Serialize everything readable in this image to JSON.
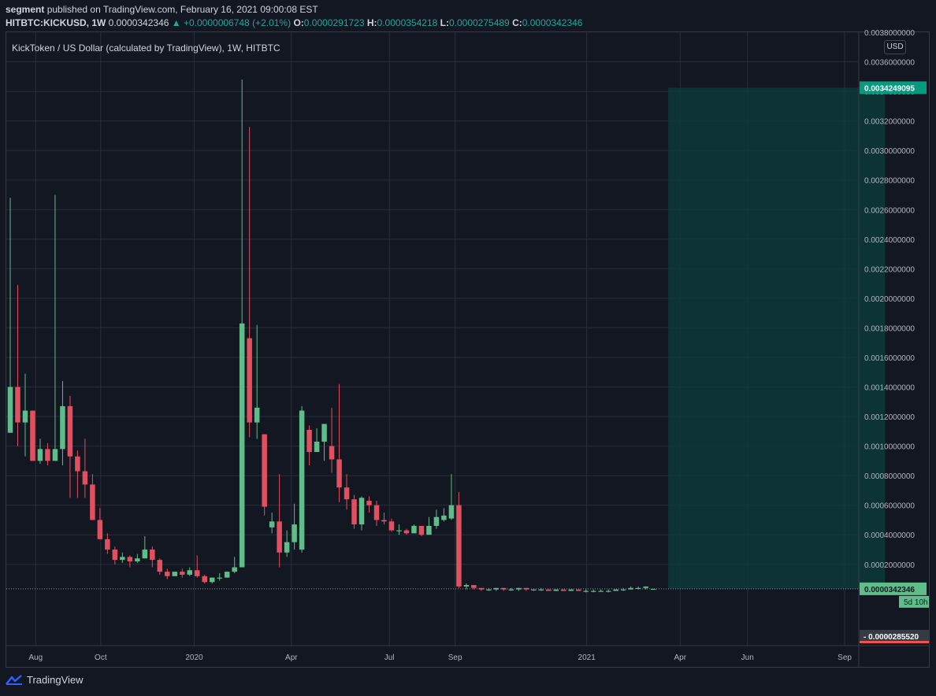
{
  "header": {
    "user": "segment",
    "published_text": "published on TradingView.com, February 16, 2021 09:00:08 EST",
    "symbol": "HITBTC:KICKUSD, 1W",
    "price": "0.0000342346",
    "change": "▲ +0.0000006748 (+2.01%)",
    "o_label": "O:",
    "o": "0.0000291723",
    "h_label": "H:",
    "h": "0.0000354218",
    "l_label": "L:",
    "l": "0.0000275489",
    "c_label": "C:",
    "c": "0.0000342346"
  },
  "chart_title": "KickToken / US Dollar (calculated by TradingView), 1W, HITBTC",
  "currency": "USD",
  "footer": {
    "brand": "TradingView"
  },
  "colors": {
    "bg": "#131722",
    "up": "#26a69a",
    "down": "#ef5350",
    "grid": "#2a2e39",
    "zone": "#0d3a38",
    "up_candle": "#5fbd89",
    "down_candle": "#e0505f"
  },
  "labels": {
    "zone_top": "0.0034249095",
    "last_price": "0.0000342346",
    "countdown": "5d 10h",
    "low_price": "0.0000285520"
  },
  "chart_data": {
    "type": "candlestick",
    "title": "KickToken / US Dollar (calculated by TradingView), 1W, HITBTC",
    "ylim": [
      -0.00035,
      0.0038
    ],
    "y_ticks": [
      "0.0036000000",
      "0.0034000000",
      "0.0032000000",
      "0.0030000000",
      "0.0028000000",
      "0.0026000000",
      "0.0024000000",
      "0.0022000000",
      "0.0020000000",
      "0.0018000000",
      "0.0016000000",
      "0.0014000000",
      "0.0012000000",
      "0.0010000000",
      "0.0008000000",
      "0.0006000000",
      "0.0004000000",
      "0.0002000000"
    ],
    "y_tick_values": [
      0.0036,
      0.0034,
      0.0032,
      0.003,
      0.0028,
      0.0026,
      0.0024,
      0.0022,
      0.002,
      0.0018,
      0.0016,
      0.0014,
      0.0012,
      0.001,
      0.0008,
      0.0006,
      0.0004,
      0.0002
    ],
    "x_ticks": [
      {
        "label": "Aug",
        "week": 3.4
      },
      {
        "label": "Oct",
        "week": 12.1
      },
      {
        "label": "2020",
        "week": 24.6
      },
      {
        "label": "Apr",
        "week": 37.6
      },
      {
        "label": "Jul",
        "week": 50.7
      },
      {
        "label": "Sep",
        "week": 59.5
      },
      {
        "label": "2021",
        "week": 77.1
      },
      {
        "label": "Apr",
        "week": 89.6
      },
      {
        "label": "Jun",
        "week": 98.6
      },
      {
        "label": "Sep",
        "week": 111.6
      }
    ],
    "candles": [
      [
        0.00109,
        0.0014,
        0.00268,
        0.00109
      ],
      [
        0.0014,
        0.00116,
        0.00209,
        0.001
      ],
      [
        0.00116,
        0.00124,
        0.00149,
        0.00093
      ],
      [
        0.00124,
        0.0009,
        0.00124,
        0.0009
      ],
      [
        0.0009,
        0.00098,
        0.00105,
        0.00088
      ],
      [
        0.00098,
        0.0009,
        0.00102,
        0.00087
      ],
      [
        0.0009,
        0.00098,
        0.0027,
        0.0009
      ],
      [
        0.00098,
        0.00127,
        0.00144,
        0.00087
      ],
      [
        0.00127,
        0.00093,
        0.00134,
        0.00065
      ],
      [
        0.00093,
        0.00083,
        0.00097,
        0.00065
      ],
      [
        0.00083,
        0.00074,
        0.00105,
        0.00065
      ],
      [
        0.00074,
        0.0005,
        0.00081,
        0.0005
      ],
      [
        0.0005,
        0.00037,
        0.00058,
        0.00037
      ],
      [
        0.00037,
        0.0003,
        0.00041,
        0.00027
      ],
      [
        0.0003,
        0.00023,
        0.00032,
        0.0002
      ],
      [
        0.00023,
        0.00025,
        0.00028,
        0.00021
      ],
      [
        0.00025,
        0.00022,
        0.00026,
        0.00018
      ],
      [
        0.00022,
        0.00024,
        0.00027,
        0.00021
      ],
      [
        0.00024,
        0.0003,
        0.00039,
        0.00024
      ],
      [
        0.0003,
        0.00023,
        0.00032,
        0.00018
      ],
      [
        0.00023,
        0.00015,
        0.00024,
        0.00013
      ],
      [
        0.00015,
        0.00012,
        0.00017,
        0.0001
      ],
      [
        0.00012,
        0.00015,
        0.00015,
        0.00012
      ],
      [
        0.00015,
        0.00013,
        0.00017,
        0.00011
      ],
      [
        0.00013,
        0.00016,
        0.00018,
        0.00012
      ],
      [
        0.00016,
        0.00012,
        0.00026,
        0.00011
      ],
      [
        0.00012,
        8e-05,
        0.00013,
        7e-05
      ],
      [
        8e-05,
        0.00011,
        0.00011,
        7e-05
      ],
      [
        0.00011,
        0.00011,
        0.00014,
        9e-05
      ],
      [
        0.00011,
        0.00015,
        0.00015,
        0.00011
      ],
      [
        0.00015,
        0.00018,
        0.00025,
        0.00014
      ],
      [
        0.00018,
        0.00183,
        0.00348,
        0.00018
      ],
      [
        0.00173,
        0.00116,
        0.00316,
        0.00106
      ],
      [
        0.00116,
        0.00126,
        0.00182,
        0.00105
      ],
      [
        0.00108,
        0.00059,
        0.00108,
        0.00053
      ],
      [
        0.00045,
        0.00049,
        0.00055,
        0.00041
      ],
      [
        0.00049,
        0.00028,
        0.00081,
        0.00018
      ],
      [
        0.00028,
        0.00035,
        0.00043,
        0.00025
      ],
      [
        0.00035,
        0.00047,
        0.00061,
        0.0003
      ],
      [
        0.0003,
        0.00124,
        0.00127,
        0.00028
      ],
      [
        0.00111,
        0.00096,
        0.00114,
        0.00087
      ],
      [
        0.00096,
        0.00103,
        0.00112,
        0.00096
      ],
      [
        0.00103,
        0.00115,
        0.00115,
        0.0009
      ],
      [
        0.001,
        0.00091,
        0.00126,
        0.00082
      ],
      [
        0.00091,
        0.00072,
        0.00142,
        0.00062
      ],
      [
        0.00072,
        0.00064,
        0.00081,
        0.00057
      ],
      [
        0.00064,
        0.00047,
        0.00067,
        0.00044
      ],
      [
        0.00047,
        0.00065,
        0.00066,
        0.00043
      ],
      [
        0.00063,
        0.0006,
        0.00066,
        0.00055
      ],
      [
        0.0006,
        0.0005,
        0.00063,
        0.00046
      ],
      [
        0.0005,
        0.00049,
        0.00055,
        0.00047
      ],
      [
        0.00049,
        0.00043,
        0.00051,
        0.00042
      ],
      [
        0.00043,
        0.00043,
        0.00047,
        0.0004
      ],
      [
        0.00043,
        0.00041,
        0.00044,
        0.0004
      ],
      [
        0.00041,
        0.00046,
        0.00047,
        0.00041
      ],
      [
        0.00046,
        0.0004,
        0.00046,
        0.00039
      ],
      [
        0.0004,
        0.00046,
        0.00052,
        0.0004
      ],
      [
        0.00046,
        0.00052,
        0.00057,
        0.00044
      ],
      [
        0.0005,
        0.00053,
        0.00058,
        0.00049
      ],
      [
        0.00051,
        0.0006,
        0.00081,
        0.0005
      ],
      [
        0.0006,
        5e-05,
        0.00069,
        4e-05
      ],
      [
        5e-05,
        6e-05,
        7e-05,
        3e-05
      ],
      [
        6e-05,
        4e-05,
        6e-05,
        3e-05
      ],
      [
        4e-05,
        3e-05,
        4e-05,
        2e-05
      ],
      [
        3e-05,
        3e-05,
        4e-05,
        2e-05
      ],
      [
        3e-05,
        4e-05,
        4e-05,
        2e-05
      ],
      [
        4e-05,
        3e-05,
        4e-05,
        2e-05
      ],
      [
        3e-05,
        3e-05,
        4e-05,
        2e-05
      ],
      [
        3e-05,
        4e-05,
        4e-05,
        2e-05
      ],
      [
        4e-05,
        3e-05,
        4e-05,
        2e-05
      ],
      [
        3e-05,
        3e-05,
        3e-05,
        2e-05
      ],
      [
        3e-05,
        3e-05,
        4e-05,
        2e-05
      ],
      [
        3e-05,
        2e-05,
        3e-05,
        2e-05
      ],
      [
        2e-05,
        3e-05,
        3e-05,
        2e-05
      ],
      [
        3e-05,
        2e-05,
        3e-05,
        2e-05
      ],
      [
        2e-05,
        3e-05,
        3e-05,
        2e-05
      ],
      [
        3e-05,
        2e-05,
        3e-05,
        2e-05
      ],
      [
        2e-05,
        2e-05,
        3e-05,
        1e-05
      ],
      [
        2e-05,
        2e-05,
        3e-05,
        1e-05
      ],
      [
        2e-05,
        2e-05,
        3e-05,
        2e-05
      ],
      [
        2e-05,
        2e-05,
        3e-05,
        1e-05
      ],
      [
        2e-05,
        3e-05,
        3e-05,
        2e-05
      ],
      [
        3e-05,
        3e-05,
        4e-05,
        2e-05
      ],
      [
        3e-05,
        4e-05,
        5e-05,
        3e-05
      ],
      [
        4e-05,
        4e-05,
        5e-05,
        3e-05
      ],
      [
        4e-05,
        5e-05,
        5e-05,
        3e-05
      ],
      [
        2.9e-05,
        3.4e-05,
        3.5e-05,
        2.8e-05
      ]
    ],
    "zone": {
      "start_week": 88,
      "end_week": 117,
      "top": 0.0034249095,
      "bottom": 3.42346e-05
    },
    "last_price": 3.42346e-05,
    "low_price": 2.8552e-05
  }
}
